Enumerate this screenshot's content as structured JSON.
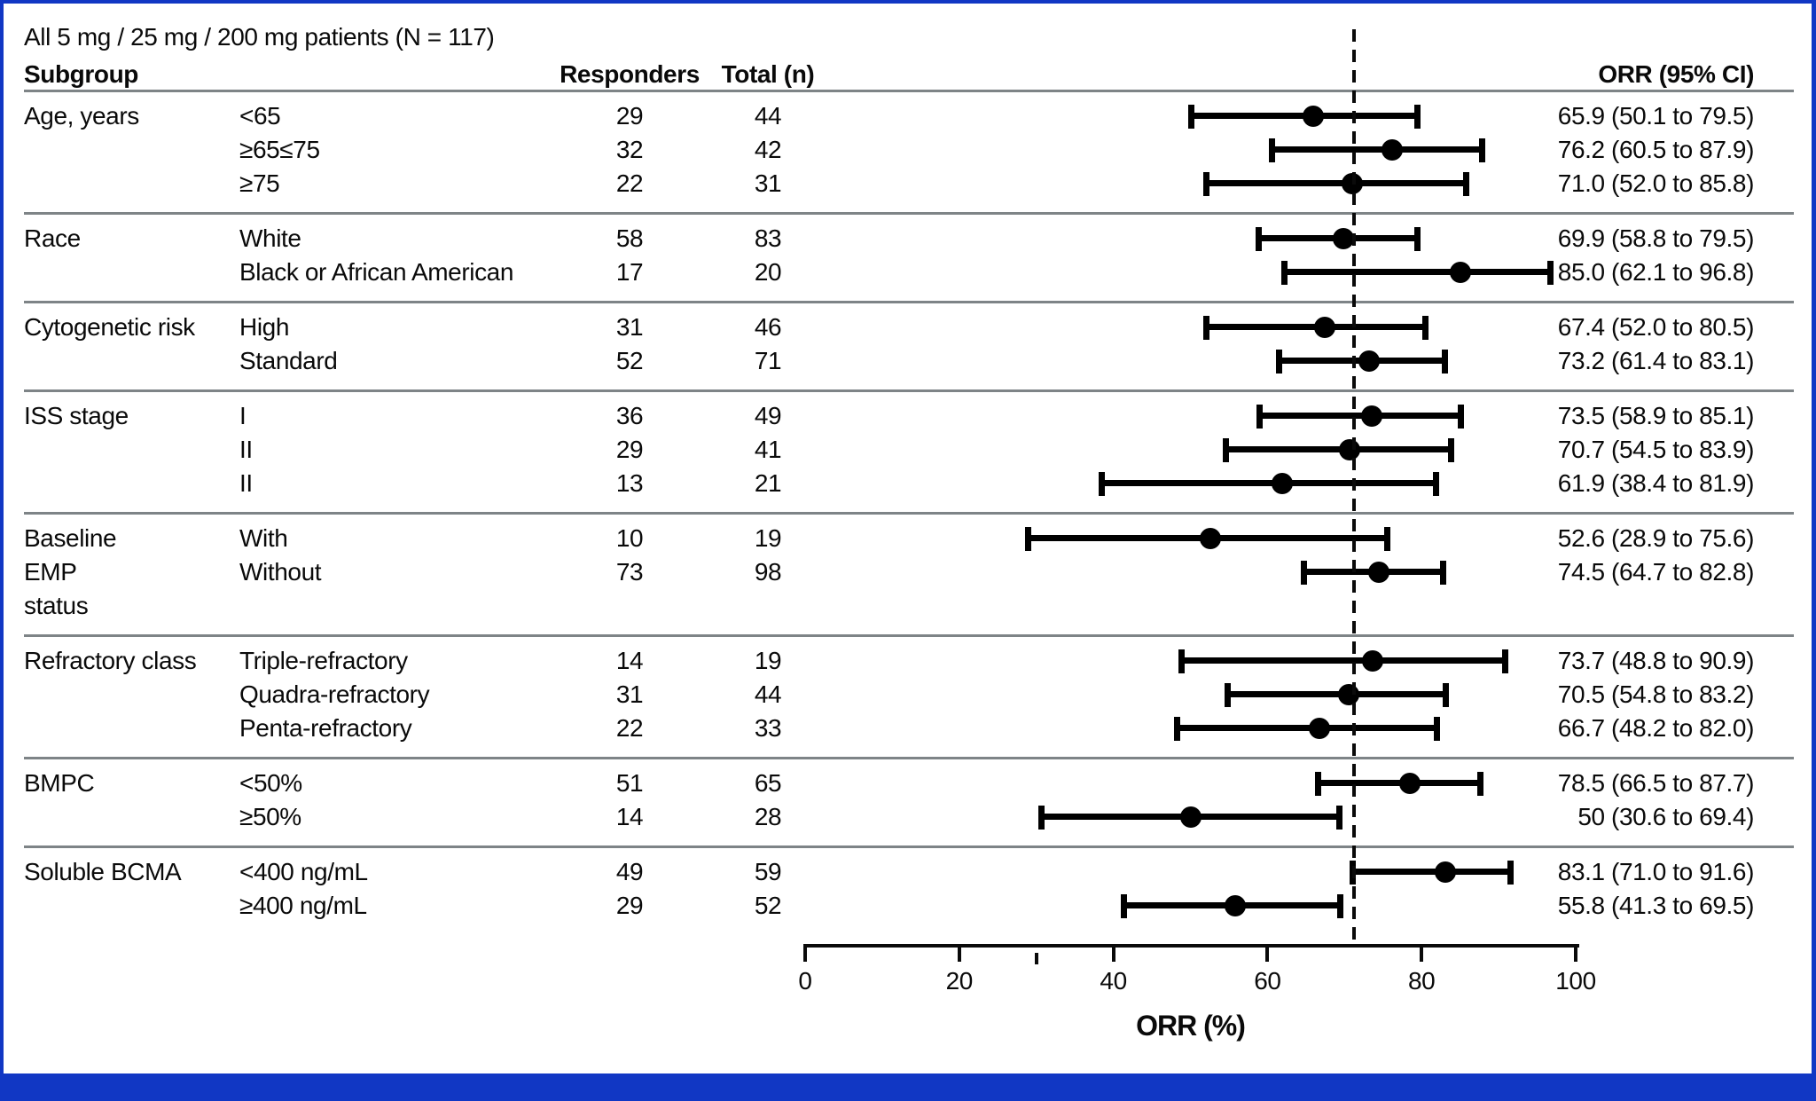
{
  "title": "All 5 mg / 25 mg / 200 mg patients (N = 117)",
  "columns": {
    "subgroup": "Subgroup",
    "responders": "Responders",
    "total": "Total (n)",
    "orr": "ORR (95% CI)"
  },
  "axis": {
    "label": "ORR (%)",
    "ticks": [
      0,
      20,
      40,
      60,
      80,
      100
    ],
    "minor_tick": 30,
    "range": [
      0,
      100
    ],
    "reference_line": 71.2
  },
  "colors": {
    "border_blue": "#1137c4",
    "separator_gray": "#7e8487",
    "marker_black": "#000000"
  },
  "chart_data": {
    "type": "forest",
    "xlabel": "ORR (%)",
    "xlim": [
      0,
      100
    ],
    "reference_value": 71.2,
    "groups": [
      {
        "label": [
          "Age, years"
        ],
        "rows": [
          {
            "category": "<65",
            "responders": "29",
            "total": "44",
            "orr": 65.9,
            "ci_low": 50.1,
            "ci_high": 79.5,
            "orr_text": "65.9 (50.1 to 79.5)"
          },
          {
            "category": "≥65≤75",
            "responders": "32",
            "total": "42",
            "orr": 76.2,
            "ci_low": 60.5,
            "ci_high": 87.9,
            "orr_text": "76.2 (60.5 to 87.9)"
          },
          {
            "category": "≥75",
            "responders": "22",
            "total": "31",
            "orr": 71.0,
            "ci_low": 52.0,
            "ci_high": 85.8,
            "orr_text": "71.0 (52.0 to 85.8)"
          }
        ]
      },
      {
        "label": [
          "Race"
        ],
        "rows": [
          {
            "category": "White",
            "responders": "58",
            "total": "83",
            "orr": 69.9,
            "ci_low": 58.8,
            "ci_high": 79.5,
            "orr_text": "69.9 (58.8 to 79.5)"
          },
          {
            "category": "Black or African American",
            "responders": "17",
            "total": "20",
            "orr": 85.0,
            "ci_low": 62.1,
            "ci_high": 96.8,
            "orr_text": "85.0 (62.1 to 96.8)"
          }
        ]
      },
      {
        "label": [
          "Cytogenetic risk"
        ],
        "rows": [
          {
            "category": "High",
            "responders": "31",
            "total": "46",
            "orr": 67.4,
            "ci_low": 52.0,
            "ci_high": 80.5,
            "orr_text": "67.4 (52.0 to 80.5)"
          },
          {
            "category": "Standard",
            "responders": "52",
            "total": "71",
            "orr": 73.2,
            "ci_low": 61.4,
            "ci_high": 83.1,
            "orr_text": "73.2 (61.4 to 83.1)"
          }
        ]
      },
      {
        "label": [
          "ISS stage"
        ],
        "rows": [
          {
            "category": "I",
            "responders": "36",
            "total": "49",
            "orr": 73.5,
            "ci_low": 58.9,
            "ci_high": 85.1,
            "orr_text": "73.5 (58.9 to 85.1)"
          },
          {
            "category": "II",
            "responders": "29",
            "total": "41",
            "orr": 70.7,
            "ci_low": 54.5,
            "ci_high": 83.9,
            "orr_text": "70.7 (54.5 to 83.9)"
          },
          {
            "category": "II",
            "responders": "13",
            "total": "21",
            "orr": 61.9,
            "ci_low": 38.4,
            "ci_high": 81.9,
            "orr_text": "61.9 (38.4 to 81.9)"
          }
        ]
      },
      {
        "label": [
          "Baseline",
          "EMP",
          "status"
        ],
        "rows": [
          {
            "category": "With",
            "responders": "10",
            "total": "19",
            "orr": 52.6,
            "ci_low": 28.9,
            "ci_high": 75.6,
            "orr_text": "52.6 (28.9 to 75.6)"
          },
          {
            "category": "Without",
            "responders": "73",
            "total": "98",
            "orr": 74.5,
            "ci_low": 64.7,
            "ci_high": 82.8,
            "orr_text": "74.5 (64.7 to 82.8)"
          }
        ]
      },
      {
        "label": [
          "Refractory class"
        ],
        "rows": [
          {
            "category": "Triple-refractory",
            "responders": "14",
            "total": "19",
            "orr": 73.7,
            "ci_low": 48.8,
            "ci_high": 90.9,
            "orr_text": "73.7 (48.8 to 90.9)"
          },
          {
            "category": "Quadra-refractory",
            "responders": "31",
            "total": "44",
            "orr": 70.5,
            "ci_low": 54.8,
            "ci_high": 83.2,
            "orr_text": "70.5 (54.8 to 83.2)"
          },
          {
            "category": "Penta-refractory",
            "responders": "22",
            "total": "33",
            "orr": 66.7,
            "ci_low": 48.2,
            "ci_high": 82.0,
            "orr_text": "66.7 (48.2 to 82.0)"
          }
        ]
      },
      {
        "label": [
          "BMPC"
        ],
        "rows": [
          {
            "category": "<50%",
            "responders": "51",
            "total": "65",
            "orr": 78.5,
            "ci_low": 66.5,
            "ci_high": 87.7,
            "orr_text": "78.5 (66.5 to 87.7)"
          },
          {
            "category": "≥50%",
            "responders": "14",
            "total": "28",
            "orr": 50.0,
            "ci_low": 30.6,
            "ci_high": 69.4,
            "orr_text": "50 (30.6 to 69.4)"
          }
        ]
      },
      {
        "label": [
          "Soluble BCMA"
        ],
        "rows": [
          {
            "category": "<400 ng/mL",
            "responders": "49",
            "total": "59",
            "orr": 83.1,
            "ci_low": 71.0,
            "ci_high": 91.6,
            "orr_text": "83.1 (71.0 to 91.6)"
          },
          {
            "category": "≥400 ng/mL",
            "responders": "29",
            "total": "52",
            "orr": 55.8,
            "ci_low": 41.3,
            "ci_high": 69.5,
            "orr_text": "55.8 (41.3 to 69.5)"
          }
        ]
      }
    ]
  }
}
